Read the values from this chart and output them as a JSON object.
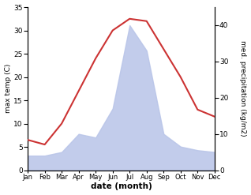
{
  "months": [
    "Jan",
    "Feb",
    "Mar",
    "Apr",
    "May",
    "Jun",
    "Jul",
    "Aug",
    "Sep",
    "Oct",
    "Nov",
    "Dec"
  ],
  "temp": [
    6.5,
    5.5,
    10.0,
    17.0,
    24.0,
    30.0,
    32.5,
    32.0,
    26.0,
    20.0,
    13.0,
    11.5
  ],
  "precip": [
    4.0,
    4.0,
    5.0,
    10.0,
    9.0,
    17.0,
    40.0,
    33.0,
    10.0,
    6.5,
    5.5,
    5.0
  ],
  "temp_color": "#cc3333",
  "precip_fill_color": "#b8c4e8",
  "temp_ylim": [
    0,
    35
  ],
  "precip_ylim": [
    0,
    45
  ],
  "temp_ylabel": "max temp (C)",
  "precip_ylabel": "med. precipitation (kg/m2)",
  "xlabel": "date (month)",
  "temp_yticks": [
    0,
    5,
    10,
    15,
    20,
    25,
    30,
    35
  ],
  "precip_yticks": [
    0,
    10,
    20,
    30,
    40
  ],
  "bg_color": "#ffffff",
  "figwidth": 3.18,
  "figheight": 2.47,
  "dpi": 100
}
